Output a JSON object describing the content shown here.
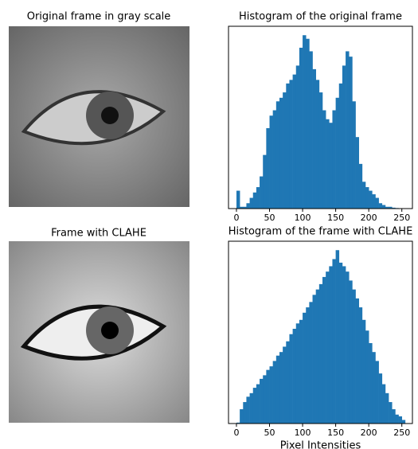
{
  "images": [
    {
      "title": "Original frame in gray scale"
    },
    {
      "title": "Frame with CLAHE"
    }
  ],
  "chart_data": [
    {
      "type": "histogram",
      "title": "Histogram of the original frame",
      "color": "#1f77b4",
      "bins": [
        0,
        5,
        10,
        15,
        20,
        25,
        30,
        35,
        40,
        45,
        50,
        55,
        60,
        65,
        70,
        75,
        80,
        85,
        90,
        95,
        100,
        105,
        110,
        115,
        120,
        125,
        130,
        135,
        140,
        145,
        150,
        155,
        160,
        165,
        170,
        175,
        180,
        185,
        190,
        195,
        200,
        205,
        210,
        215,
        220,
        225,
        230,
        235,
        240,
        245,
        250,
        255
      ],
      "values": [
        10,
        1,
        1,
        3,
        6,
        9,
        12,
        18,
        30,
        45,
        52,
        55,
        60,
        62,
        65,
        70,
        72,
        75,
        80,
        90,
        97,
        95,
        88,
        78,
        72,
        65,
        55,
        50,
        48,
        55,
        62,
        70,
        80,
        88,
        85,
        60,
        40,
        25,
        15,
        12,
        10,
        8,
        6,
        3,
        2,
        1,
        1,
        0.5,
        0.3,
        0.2,
        0.1
      ],
      "xlim": [
        -12,
        266
      ],
      "ylim": [
        0,
        102
      ],
      "xticks": [
        0,
        50,
        100,
        150,
        200,
        250
      ]
    },
    {
      "type": "histogram",
      "title": "Histogram of the frame with CLAHE",
      "xlabel": "Pixel Intensities",
      "color": "#1f77b4",
      "bins": [
        0,
        5,
        10,
        15,
        20,
        25,
        30,
        35,
        40,
        45,
        50,
        55,
        60,
        65,
        70,
        75,
        80,
        85,
        90,
        95,
        100,
        105,
        110,
        115,
        120,
        125,
        130,
        135,
        140,
        145,
        150,
        155,
        160,
        165,
        170,
        175,
        180,
        185,
        190,
        195,
        200,
        205,
        210,
        215,
        220,
        225,
        230,
        235,
        240,
        245,
        250,
        255
      ],
      "values": [
        0.5,
        8,
        12,
        15,
        17,
        20,
        22,
        25,
        27,
        30,
        32,
        35,
        38,
        40,
        43,
        46,
        50,
        53,
        56,
        58,
        62,
        65,
        68,
        72,
        75,
        78,
        82,
        85,
        88,
        92,
        97,
        90,
        88,
        85,
        80,
        75,
        70,
        65,
        58,
        52,
        45,
        40,
        35,
        28,
        22,
        17,
        12,
        8,
        5,
        4,
        2
      ],
      "xlim": [
        -12,
        266
      ],
      "ylim": [
        0,
        102
      ],
      "xticks": [
        0,
        50,
        100,
        150,
        200,
        250
      ]
    }
  ]
}
